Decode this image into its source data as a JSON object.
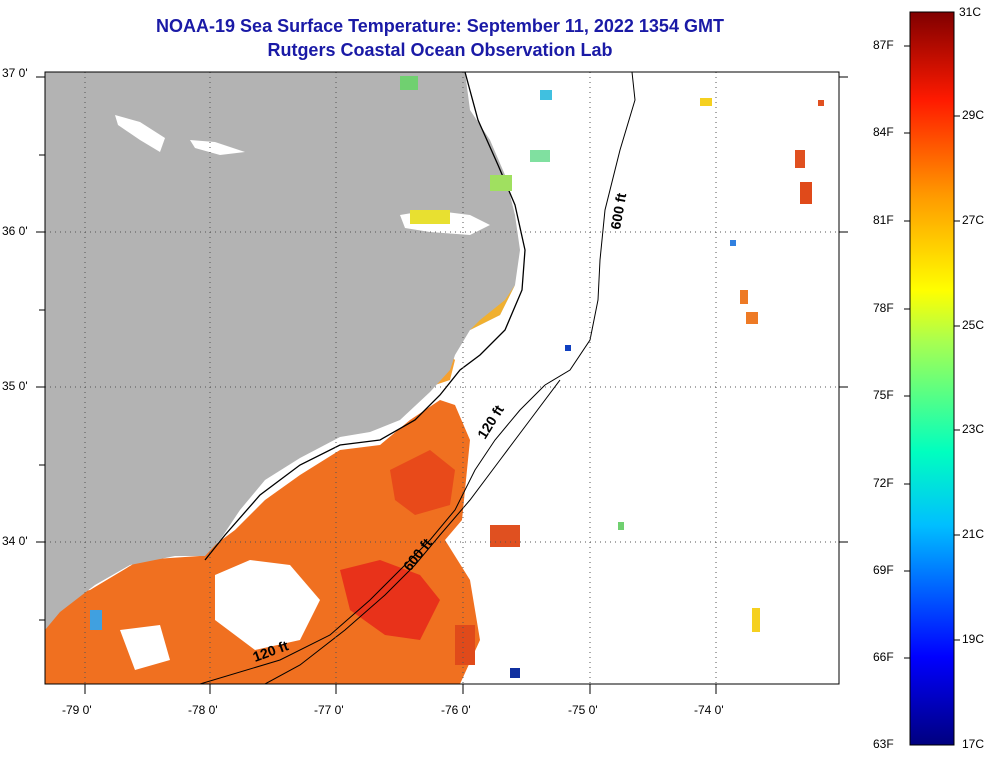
{
  "header": {
    "title": "NOAA-19 Sea Surface Temperature:  September 11, 2022 1354 GMT",
    "subtitle": "Rutgers Coastal Ocean Observation Lab"
  },
  "map": {
    "lat_labels": [
      "37 0'",
      "36 0'",
      "35 0'",
      "34 0'"
    ],
    "lon_labels": [
      "-79 0'",
      "-78 0'",
      "-77 0'",
      "-76 0'",
      "-75 0'",
      "-74 0'"
    ],
    "contours": [
      "600 ft",
      "120 ft",
      "600 ft",
      "120 ft"
    ],
    "land_color": "#b3b3b3",
    "ocean_color": "#ffffff"
  },
  "colorbar": {
    "f_labels": [
      "87F",
      "84F",
      "81F",
      "78F",
      "75F",
      "72F",
      "69F",
      "66F",
      "63F"
    ],
    "c_labels": [
      "31C",
      "29C",
      "27C",
      "25C",
      "23C",
      "21C",
      "19C",
      "17C"
    ]
  }
}
